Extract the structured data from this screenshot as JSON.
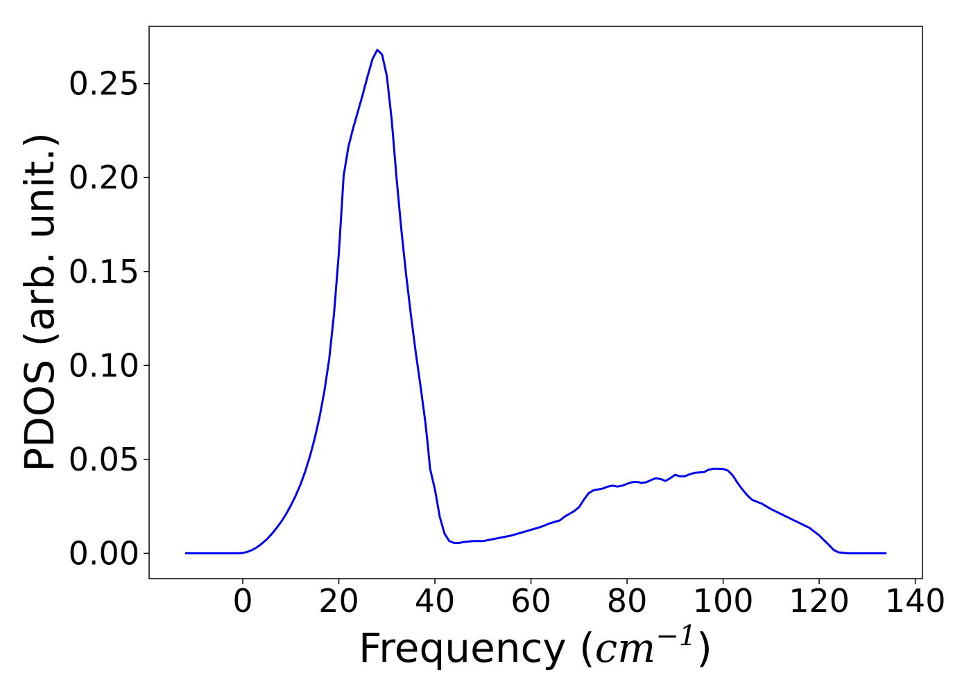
{
  "chart_data": {
    "type": "line",
    "title": "",
    "xlabel": {
      "prefix": "Frequency (",
      "math": "cm",
      "sup": "−1",
      "suffix": ")"
    },
    "ylabel": "PDOS (arb. unit.)",
    "xlim": [
      -19.5,
      141.5
    ],
    "ylim": [
      -0.0135,
      0.2805
    ],
    "xticks": [
      0,
      20,
      40,
      60,
      80,
      100,
      120,
      140
    ],
    "xtick_labels": [
      "0",
      "20",
      "40",
      "60",
      "80",
      "100",
      "120",
      "140"
    ],
    "yticks": [
      0.0,
      0.05,
      0.1,
      0.15,
      0.2,
      0.25
    ],
    "ytick_labels": [
      "0.00",
      "0.05",
      "0.10",
      "0.15",
      "0.20",
      "0.25"
    ],
    "grid": false,
    "line_color": "#0000ee",
    "series": [
      {
        "x": [
          -12,
          -8,
          -4,
          -1,
          0,
          1,
          2,
          3,
          4,
          5,
          6,
          7,
          8,
          9,
          10,
          11,
          12,
          13,
          14,
          15,
          16,
          17,
          18,
          19,
          20,
          21,
          22,
          23,
          24,
          25,
          26,
          27,
          28,
          29,
          30,
          31,
          32,
          33,
          34,
          35,
          36,
          37,
          38,
          38.5,
          39,
          40,
          41,
          42,
          43,
          44,
          45,
          46,
          48,
          50,
          52,
          54,
          56,
          58,
          60,
          62,
          64,
          66,
          67,
          68,
          69,
          70,
          71,
          72,
          73,
          74,
          75,
          76,
          77,
          78,
          79,
          80,
          81,
          82,
          83,
          84,
          85,
          86,
          87,
          88,
          89,
          90,
          91,
          92,
          93,
          94,
          95,
          96,
          97,
          98,
          99,
          100,
          101,
          102,
          103,
          104,
          105,
          106,
          108,
          110,
          112,
          114,
          116,
          118,
          119,
          120,
          121,
          122,
          123,
          124,
          126,
          128,
          130,
          132,
          134
        ],
        "y": [
          0.0,
          0.0,
          0.0,
          0.0,
          0.0002,
          0.0008,
          0.0018,
          0.0033,
          0.0052,
          0.0075,
          0.0102,
          0.0133,
          0.0168,
          0.0208,
          0.0254,
          0.0306,
          0.0366,
          0.0436,
          0.0518,
          0.0614,
          0.0728,
          0.0865,
          0.1035,
          0.1275,
          0.16,
          0.201,
          0.2165,
          0.2265,
          0.2355,
          0.2445,
          0.254,
          0.263,
          0.268,
          0.2655,
          0.254,
          0.231,
          0.2,
          0.1725,
          0.1485,
          0.127,
          0.107,
          0.089,
          0.07,
          0.058,
          0.045,
          0.034,
          0.0195,
          0.0105,
          0.0065,
          0.0055,
          0.0055,
          0.006,
          0.0065,
          0.0065,
          0.0075,
          0.0085,
          0.0095,
          0.011,
          0.0125,
          0.014,
          0.016,
          0.0175,
          0.0195,
          0.021,
          0.0225,
          0.0245,
          0.0285,
          0.032,
          0.0335,
          0.034,
          0.0345,
          0.0355,
          0.036,
          0.0355,
          0.036,
          0.037,
          0.0378,
          0.038,
          0.0375,
          0.0378,
          0.039,
          0.04,
          0.0395,
          0.0385,
          0.04,
          0.0418,
          0.041,
          0.041,
          0.042,
          0.0428,
          0.043,
          0.0432,
          0.0445,
          0.045,
          0.045,
          0.0449,
          0.044,
          0.0415,
          0.0375,
          0.034,
          0.031,
          0.0285,
          0.0265,
          0.0235,
          0.021,
          0.0185,
          0.016,
          0.0135,
          0.0115,
          0.0095,
          0.007,
          0.0045,
          0.0018,
          0.0005,
          0.0,
          0.0,
          0.0,
          0.0,
          0.0
        ]
      }
    ]
  }
}
